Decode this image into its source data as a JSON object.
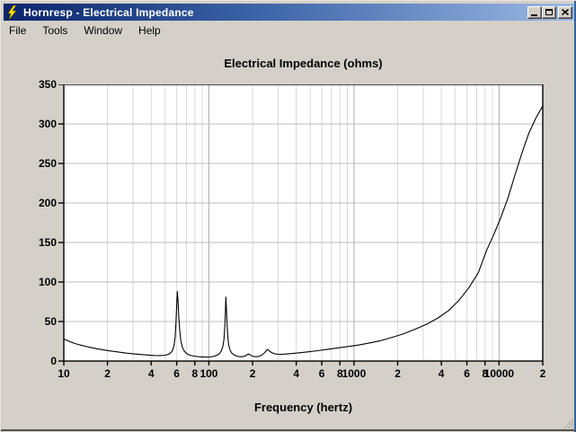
{
  "window": {
    "title": "Hornresp - Electrical Impedance",
    "app_icon": "lightning-bolt-icon",
    "controls": [
      {
        "name": "minimize-button",
        "glyph": "_"
      },
      {
        "name": "maximize-button",
        "glyph": "[]"
      },
      {
        "name": "close-button",
        "glyph": "X"
      }
    ]
  },
  "menu": {
    "items": [
      "File",
      "Tools",
      "Window",
      "Help"
    ]
  },
  "chart_data": {
    "type": "line",
    "title": "Electrical Impedance (ohms)",
    "xlabel": "Frequency (hertz)",
    "ylabel": "",
    "x_scale": "log",
    "xlim": [
      10,
      20000
    ],
    "ylim": [
      0,
      350
    ],
    "grid": true,
    "legend": "none",
    "y_ticks": [
      0,
      50,
      100,
      150,
      200,
      250,
      300,
      350
    ],
    "x_ticks": [
      {
        "label": "10",
        "value": 10
      },
      {
        "label": "2",
        "value": 20
      },
      {
        "label": "4",
        "value": 40
      },
      {
        "label": "6",
        "value": 60
      },
      {
        "label": "8",
        "value": 80
      },
      {
        "label": "100",
        "value": 100
      },
      {
        "label": "2",
        "value": 200
      },
      {
        "label": "4",
        "value": 400
      },
      {
        "label": "6",
        "value": 600
      },
      {
        "label": "8",
        "value": 800
      },
      {
        "label": "1000",
        "value": 1000
      },
      {
        "label": "2",
        "value": 2000
      },
      {
        "label": "4",
        "value": 4000
      },
      {
        "label": "6",
        "value": 6000
      },
      {
        "label": "8",
        "value": 8000
      },
      {
        "label": "10000",
        "value": 10000
      },
      {
        "label": "2",
        "value": 20000
      }
    ],
    "series": [
      {
        "name": "Electrical Impedance",
        "color": "#000000",
        "points": [
          [
            10,
            28
          ],
          [
            11,
            24.5
          ],
          [
            12,
            22
          ],
          [
            13.5,
            19.5
          ],
          [
            15,
            17.5
          ],
          [
            17,
            15.5
          ],
          [
            19,
            14
          ],
          [
            21,
            12.7
          ],
          [
            24,
            11.2
          ],
          [
            27,
            10
          ],
          [
            30,
            9.2
          ],
          [
            34,
            8.3
          ],
          [
            38,
            7.6
          ],
          [
            42,
            7.1
          ],
          [
            46,
            6.9
          ],
          [
            50,
            7.4
          ],
          [
            53,
            8.8
          ],
          [
            55,
            11
          ],
          [
            56.5,
            14.5
          ],
          [
            57.5,
            20
          ],
          [
            58.5,
            30
          ],
          [
            59.3,
            48
          ],
          [
            60,
            70
          ],
          [
            60.6,
            88
          ],
          [
            61.2,
            78
          ],
          [
            62,
            56
          ],
          [
            63,
            38
          ],
          [
            64,
            26
          ],
          [
            65.5,
            18
          ],
          [
            67.5,
            12.8
          ],
          [
            70,
            9.5
          ],
          [
            74,
            7.4
          ],
          [
            79,
            6.2
          ],
          [
            85,
            5.4
          ],
          [
            92,
            5
          ],
          [
            100,
            5.1
          ],
          [
            107,
            5.8
          ],
          [
            113,
            7
          ],
          [
            118,
            9.2
          ],
          [
            122,
            13
          ],
          [
            125,
            19
          ],
          [
            127,
            27
          ],
          [
            128.5,
            40
          ],
          [
            129.8,
            60
          ],
          [
            130.8,
            81
          ],
          [
            132.2,
            66
          ],
          [
            133.5,
            46
          ],
          [
            135,
            31
          ],
          [
            137,
            20
          ],
          [
            140,
            13.5
          ],
          [
            144,
            10
          ],
          [
            149,
            7.8
          ],
          [
            155,
            6.4
          ],
          [
            162,
            5.6
          ],
          [
            170,
            5.5
          ],
          [
            177,
            6.3
          ],
          [
            183,
            7.8
          ],
          [
            187,
            9
          ],
          [
            191,
            8.2
          ],
          [
            196,
            6.8
          ],
          [
            203,
            5.8
          ],
          [
            213,
            5.4
          ],
          [
            223,
            6.2
          ],
          [
            233,
            7.8
          ],
          [
            243,
            10.8
          ],
          [
            250,
            13.8
          ],
          [
            255,
            14.6
          ],
          [
            261,
            12.8
          ],
          [
            270,
            10.8
          ],
          [
            283,
            9.3
          ],
          [
            300,
            8.5
          ],
          [
            330,
            8.7
          ],
          [
            370,
            9.4
          ],
          [
            420,
            10.4
          ],
          [
            480,
            11.6
          ],
          [
            560,
            13.1
          ],
          [
            650,
            14.7
          ],
          [
            760,
            16.4
          ],
          [
            900,
            18.3
          ],
          [
            1050,
            20
          ],
          [
            1250,
            22.5
          ],
          [
            1500,
            25.5
          ],
          [
            1800,
            29.5
          ],
          [
            2200,
            34.5
          ],
          [
            2700,
            41
          ],
          [
            3200,
            47
          ],
          [
            3800,
            54.5
          ],
          [
            4500,
            64
          ],
          [
            5300,
            77
          ],
          [
            6200,
            93
          ],
          [
            7200,
            112
          ],
          [
            8200,
            140
          ],
          [
            9200,
            160
          ],
          [
            10300,
            182
          ],
          [
            11500,
            206
          ],
          [
            12800,
            234
          ],
          [
            14300,
            262
          ],
          [
            16000,
            288
          ],
          [
            18000,
            308
          ],
          [
            20000,
            323
          ]
        ]
      }
    ]
  },
  "colors": {
    "titlebar_gradient_start": "#0a246a",
    "titlebar_gradient_end": "#9cb9e4",
    "titlebar_text": "#ffffff",
    "window_chrome": "#d4d0c8",
    "plot_background": "#ffffff",
    "grid_minor": "#d8d8d8",
    "grid_decade": "#ababab",
    "grid_horizontal": "#bdbdbd",
    "axis_border": "#000000",
    "curve": "#000000",
    "icon_bolt": "#ffdf00"
  }
}
